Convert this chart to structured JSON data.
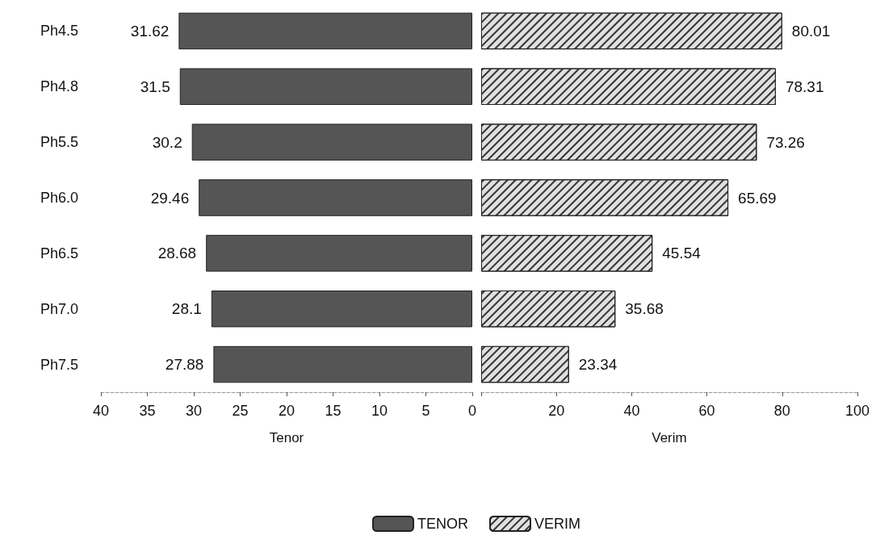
{
  "chart_data": [
    {
      "type": "bar",
      "orientation": "horizontal",
      "categories": [
        "Ph4.5",
        "Ph4.8",
        "Ph5.5",
        "Ph6.0",
        "Ph6.5",
        "Ph7.0",
        "Ph7.5"
      ],
      "xlabel": "Tenor",
      "xlim": [
        40,
        0
      ],
      "xticks": [
        40,
        35,
        30,
        25,
        20,
        15,
        10,
        5,
        0
      ],
      "series": [
        {
          "name": "TENOR",
          "color": "#555555",
          "values": [
            31.62,
            31.5,
            30.2,
            29.46,
            28.68,
            28.1,
            27.88
          ]
        }
      ],
      "data_labels": true,
      "legend": "bottom",
      "grid": false
    },
    {
      "type": "bar",
      "orientation": "horizontal",
      "categories": [
        null,
        null,
        null,
        null,
        null,
        null,
        null
      ],
      "xlabel": "Verim",
      "xlim": [
        0,
        100
      ],
      "xticks": [
        {
          "value": 0,
          "label": null
        },
        20,
        40,
        60,
        80,
        100
      ],
      "tick_labels": "x",
      "series": [
        {
          "name": "VERIM",
          "color": "#e0e0e0",
          "values": [
            80.01,
            78.31,
            73.26,
            65.69,
            45.54,
            35.68,
            23.34
          ]
        }
      ],
      "data_labels": true,
      "legend": "bottom",
      "grid": false
    }
  ]
}
